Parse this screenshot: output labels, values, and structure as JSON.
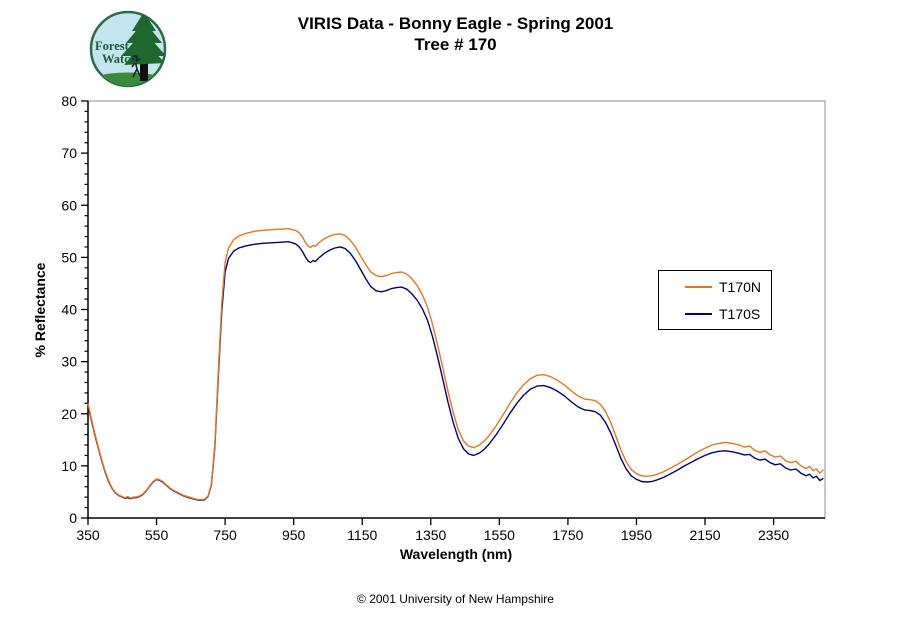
{
  "title": {
    "line1": "VIRIS Data - Bonny Eagle - Spring 2001",
    "line2": "Tree # 170"
  },
  "logo": {
    "line1": "Forest",
    "line2": "Watch",
    "bg_color": "#C2E5EE",
    "green": "#1C5E33",
    "ring": "#2A6B45"
  },
  "footer": {
    "copyright": "© 2001 University of New Hampshire"
  },
  "colors": {
    "t170n": "#E8751A",
    "t170s": "#000080",
    "plot_border": "#8C8C8C",
    "axis": "#000000"
  },
  "chart_data": {
    "type": "line",
    "title": "VIRIS Data - Bonny Eagle - Spring 2001  Tree # 170",
    "xlabel": "Wavelength (nm)",
    "ylabel": "% Reflectance",
    "xlim": [
      350,
      2500
    ],
    "ylim": [
      0,
      80
    ],
    "x_ticks": [
      350,
      550,
      750,
      950,
      1150,
      1350,
      1550,
      1750,
      1950,
      2150,
      2350
    ],
    "y_ticks": [
      0,
      10,
      20,
      30,
      40,
      50,
      60,
      70,
      80
    ],
    "y_minor_tick_step": 2,
    "grid": false,
    "legend_position": "center-right",
    "x": [
      350,
      360,
      370,
      380,
      390,
      400,
      410,
      420,
      430,
      440,
      450,
      458,
      466,
      474,
      482,
      490,
      500,
      510,
      520,
      530,
      540,
      550,
      560,
      570,
      580,
      590,
      600,
      615,
      630,
      645,
      660,
      675,
      690,
      700,
      710,
      720,
      730,
      740,
      750,
      760,
      775,
      790,
      810,
      835,
      860,
      885,
      910,
      935,
      955,
      965,
      975,
      985,
      992,
      999,
      1006,
      1013,
      1025,
      1040,
      1055,
      1070,
      1085,
      1100,
      1115,
      1130,
      1145,
      1160,
      1175,
      1190,
      1205,
      1220,
      1235,
      1250,
      1265,
      1280,
      1295,
      1310,
      1325,
      1340,
      1355,
      1370,
      1385,
      1400,
      1415,
      1430,
      1445,
      1460,
      1475,
      1490,
      1505,
      1520,
      1540,
      1560,
      1580,
      1600,
      1620,
      1640,
      1660,
      1680,
      1700,
      1720,
      1740,
      1760,
      1780,
      1800,
      1815,
      1830,
      1845,
      1860,
      1875,
      1890,
      1905,
      1920,
      1935,
      1950,
      1965,
      1980,
      1995,
      2010,
      2030,
      2050,
      2070,
      2090,
      2110,
      2130,
      2150,
      2170,
      2190,
      2210,
      2230,
      2250,
      2265,
      2280,
      2295,
      2310,
      2325,
      2340,
      2355,
      2370,
      2385,
      2400,
      2415,
      2430,
      2445,
      2455,
      2465,
      2475,
      2485,
      2495
    ],
    "series": [
      {
        "name": "T170N",
        "color": "#E8751A",
        "values": [
          22.0,
          19.0,
          16.2,
          13.6,
          11.2,
          9.0,
          7.2,
          5.8,
          4.9,
          4.4,
          4.1,
          3.9,
          4.1,
          3.8,
          4.0,
          4.0,
          4.2,
          4.6,
          5.3,
          6.2,
          7.0,
          7.5,
          7.3,
          6.9,
          6.3,
          5.7,
          5.3,
          4.8,
          4.3,
          4.0,
          3.7,
          3.5,
          3.6,
          4.2,
          6.5,
          14.0,
          28.0,
          41.0,
          49.0,
          51.8,
          53.4,
          54.1,
          54.6,
          55.0,
          55.2,
          55.3,
          55.4,
          55.5,
          55.2,
          54.8,
          54.0,
          52.8,
          52.2,
          51.9,
          52.3,
          52.1,
          52.9,
          53.6,
          54.1,
          54.4,
          54.5,
          54.2,
          53.3,
          52.0,
          50.3,
          48.6,
          47.2,
          46.5,
          46.3,
          46.5,
          46.9,
          47.1,
          47.2,
          46.8,
          45.9,
          44.6,
          42.9,
          40.5,
          37.2,
          33.2,
          28.8,
          24.4,
          20.3,
          17.0,
          14.8,
          13.8,
          13.5,
          13.9,
          14.7,
          15.8,
          17.6,
          19.7,
          21.9,
          23.9,
          25.5,
          26.7,
          27.4,
          27.5,
          27.1,
          26.4,
          25.5,
          24.4,
          23.4,
          22.8,
          22.7,
          22.5,
          21.8,
          20.4,
          18.3,
          15.7,
          13.0,
          10.8,
          9.3,
          8.5,
          8.1,
          8.0,
          8.1,
          8.4,
          8.9,
          9.6,
          10.3,
          11.1,
          11.9,
          12.7,
          13.4,
          14.0,
          14.3,
          14.5,
          14.3,
          14.0,
          13.6,
          13.8,
          13.0,
          12.6,
          12.9,
          12.1,
          11.7,
          11.9,
          11.0,
          10.6,
          10.9,
          10.0,
          9.5,
          9.9,
          9.1,
          9.4,
          8.6,
          9.3
        ]
      },
      {
        "name": "T170S",
        "color": "#000080",
        "values": [
          21.6,
          18.7,
          15.9,
          13.4,
          11.0,
          8.8,
          7.0,
          5.7,
          4.8,
          4.3,
          4.0,
          3.8,
          3.9,
          3.7,
          3.9,
          3.9,
          4.1,
          4.5,
          5.2,
          6.1,
          6.9,
          7.4,
          7.2,
          6.8,
          6.2,
          5.6,
          5.2,
          4.7,
          4.2,
          3.9,
          3.6,
          3.4,
          3.5,
          4.1,
          6.3,
          13.5,
          27.0,
          39.5,
          47.2,
          49.8,
          51.2,
          51.8,
          52.2,
          52.5,
          52.7,
          52.8,
          52.9,
          53.0,
          52.6,
          52.1,
          51.2,
          50.0,
          49.3,
          49.0,
          49.4,
          49.2,
          50.0,
          50.8,
          51.4,
          51.8,
          52.0,
          51.7,
          50.8,
          49.4,
          47.7,
          45.9,
          44.4,
          43.6,
          43.4,
          43.6,
          44.0,
          44.2,
          44.3,
          43.9,
          43.0,
          41.8,
          40.2,
          38.0,
          34.8,
          30.9,
          26.6,
          22.3,
          18.4,
          15.3,
          13.3,
          12.3,
          12.0,
          12.4,
          13.1,
          14.2,
          15.9,
          17.9,
          20.0,
          21.9,
          23.5,
          24.7,
          25.3,
          25.4,
          25.0,
          24.3,
          23.4,
          22.3,
          21.3,
          20.7,
          20.6,
          20.4,
          19.7,
          18.3,
          16.3,
          13.9,
          11.4,
          9.4,
          8.1,
          7.4,
          7.0,
          6.9,
          7.0,
          7.3,
          7.8,
          8.5,
          9.2,
          10.0,
          10.7,
          11.4,
          12.0,
          12.5,
          12.8,
          12.9,
          12.7,
          12.4,
          12.1,
          12.2,
          11.5,
          11.1,
          11.3,
          10.6,
          10.2,
          10.4,
          9.6,
          9.2,
          9.4,
          8.6,
          8.1,
          8.4,
          7.7,
          8.0,
          7.2,
          7.6
        ]
      }
    ]
  }
}
